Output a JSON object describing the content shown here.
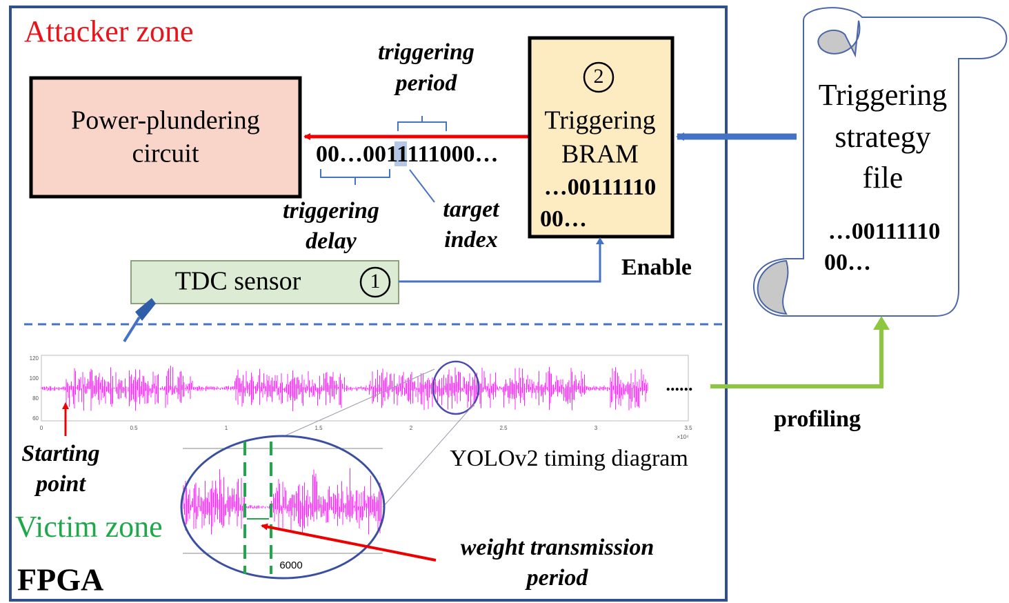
{
  "attacker_zone": "Attacker zone",
  "victim_zone": "Victim zone",
  "fpga": "FPGA",
  "power_circuit": {
    "label": [
      "Power-plundering",
      "circuit"
    ]
  },
  "bit_stream": "00…0011111000…",
  "triggering_period": [
    "triggering",
    "period"
  ],
  "triggering_delay": [
    "triggering",
    "delay"
  ],
  "target_index": [
    "target",
    "index"
  ],
  "bram": {
    "number": "2",
    "label": [
      "Triggering",
      "BRAM"
    ],
    "bits": [
      "…00111110",
      "00…"
    ]
  },
  "tdc": {
    "label": "TDC sensor",
    "number": "1"
  },
  "enable": "Enable",
  "strategy_file": {
    "label": [
      "Triggering",
      "strategy",
      "file"
    ],
    "bits": [
      "…00111110",
      "00…"
    ]
  },
  "profiling": "profiling",
  "starting_point": [
    "Starting",
    "point"
  ],
  "timing_caption": "YOLOv2 timing diagram",
  "continuation": "......",
  "timing_plot": {
    "y_ticks": [
      "120",
      "100",
      "80",
      "60"
    ],
    "x_ticks": [
      "0",
      "0.5",
      "1",
      "1.5",
      "2",
      "2.5",
      "3",
      "3.5"
    ],
    "x_scale": "×10⁴"
  },
  "zoom_tick": "6000",
  "weight_period": [
    "weight transmission",
    "period"
  ]
}
